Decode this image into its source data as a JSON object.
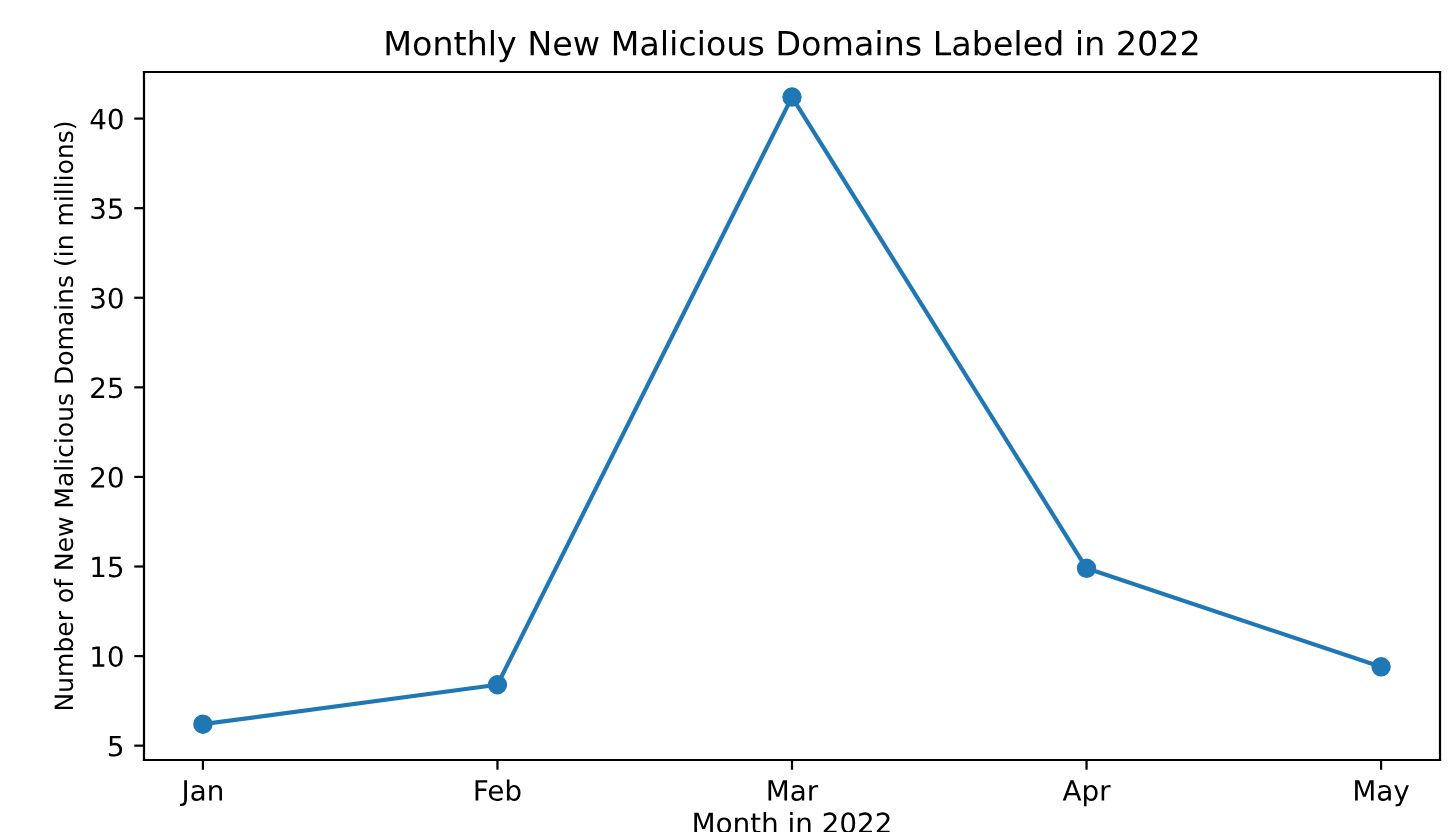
{
  "chart_data": {
    "type": "line",
    "title": "Monthly New Malicious Domains Labeled in 2022",
    "xlabel": "Month in 2022",
    "ylabel": "Number of New Malicious Domains (in millions)",
    "categories": [
      "Jan",
      "Feb",
      "Mar",
      "Apr",
      "May"
    ],
    "series": [
      {
        "color": "#1f77b4",
        "values": [
          6.2,
          8.4,
          41.2,
          14.9,
          9.4
        ]
      }
    ],
    "ylim": [
      4.2,
      42.6
    ],
    "yticks": [
      5,
      10,
      15,
      20,
      25,
      30,
      35,
      40
    ],
    "marker": "circle",
    "line_style": "solid",
    "grid": false,
    "legend": false
  }
}
